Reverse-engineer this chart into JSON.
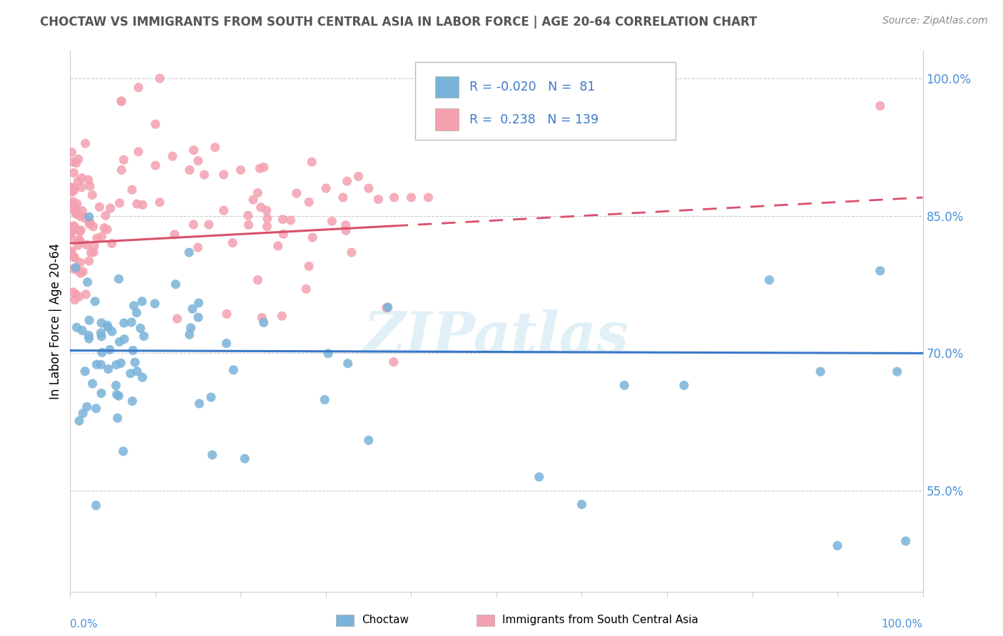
{
  "title": "CHOCTAW VS IMMIGRANTS FROM SOUTH CENTRAL ASIA IN LABOR FORCE | AGE 20-64 CORRELATION CHART",
  "source": "Source: ZipAtlas.com",
  "ylabel": "In Labor Force | Age 20-64",
  "ytick_labels": [
    "55.0%",
    "70.0%",
    "85.0%",
    "100.0%"
  ],
  "ytick_values": [
    0.55,
    0.7,
    0.85,
    1.0
  ],
  "xlim": [
    0.0,
    1.0
  ],
  "ylim": [
    0.44,
    1.03
  ],
  "r_blue": -0.02,
  "n_blue": 81,
  "r_pink": 0.238,
  "n_pink": 139,
  "blue_color": "#7ab3d9",
  "pink_color": "#f4a0b0",
  "trend_blue_color": "#3a78c9",
  "trend_pink_color": "#d9506a",
  "watermark": "ZIPatlas",
  "legend_title_blue": "Choctaw",
  "legend_title_pink": "Immigrants from South Central Asia",
  "blue_trend_start_y": 0.703,
  "blue_trend_end_y": 0.7,
  "pink_trend_start_y": 0.82,
  "pink_trend_end_y": 0.87,
  "pink_trend_solid_end_x": 0.38,
  "title_color": "#555555",
  "source_color": "#888888",
  "axis_color": "#999999",
  "grid_color": "#cccccc",
  "watermark_color": "#c8e4f0"
}
